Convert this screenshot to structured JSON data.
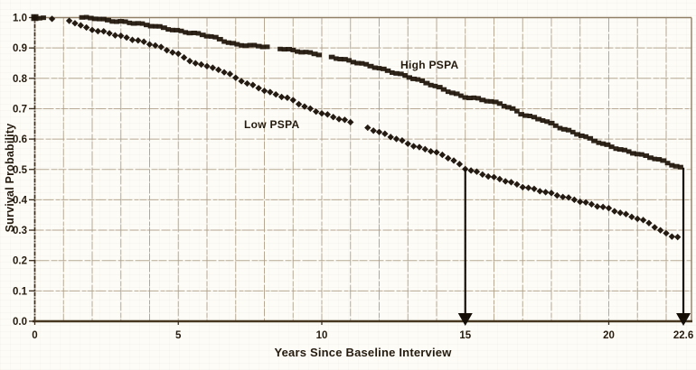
{
  "figure": {
    "background": "#fdfcf7"
  },
  "chart_data": {
    "type": "scatter",
    "title": "",
    "xlabel": "Years Since Baseline Interview",
    "ylabel": "Survival Probability",
    "xlim": [
      0,
      22.9
    ],
    "ylim": [
      0.0,
      1.0
    ],
    "grid": true,
    "legend_position": "inline-annotations",
    "x_ticks": [
      {
        "value": 0,
        "label": "0"
      },
      {
        "value": 5,
        "label": "5"
      },
      {
        "value": 10,
        "label": "10"
      },
      {
        "value": 15,
        "label": "15"
      },
      {
        "value": 20,
        "label": "20"
      },
      {
        "value": 22.6,
        "label": "22.6"
      }
    ],
    "y_ticks": [
      {
        "value": 1.0,
        "label": "1.0"
      },
      {
        "value": 0.9,
        "label": "0.9"
      },
      {
        "value": 0.8,
        "label": "0.8"
      },
      {
        "value": 0.7,
        "label": "0.7"
      },
      {
        "value": 0.6,
        "label": "0.6"
      },
      {
        "value": 0.5,
        "label": "0.5"
      },
      {
        "value": 0.4,
        "label": "0.4"
      },
      {
        "value": 0.3,
        "label": "0.3"
      },
      {
        "value": 0.2,
        "label": "0.2"
      },
      {
        "value": 0.1,
        "label": "0.1"
      },
      {
        "value": 0.0,
        "label": "0.0"
      }
    ],
    "series": [
      {
        "name": "High PSPA",
        "marker": "square",
        "color": "#241a0f",
        "label_pos": {
          "year": 12.74,
          "prob": 0.844
        },
        "points": [
          [
            0,
            1.0
          ],
          [
            0.25,
            1.0
          ],
          [
            1.65,
            1.0
          ],
          [
            2.1,
            0.998
          ],
          [
            2.6,
            0.99
          ],
          [
            3.5,
            0.982
          ],
          [
            4.3,
            0.97
          ],
          [
            5,
            0.956
          ],
          [
            5.6,
            0.948
          ],
          [
            6.2,
            0.937
          ],
          [
            6.6,
            0.923
          ],
          [
            7,
            0.911
          ],
          [
            7.9,
            0.906
          ],
          [
            8.6,
            0.898
          ],
          [
            9.2,
            0.889
          ],
          [
            9.9,
            0.879
          ],
          [
            10.4,
            0.869
          ],
          [
            11.1,
            0.855
          ],
          [
            11.7,
            0.841
          ],
          [
            12.3,
            0.825
          ],
          [
            13,
            0.806
          ],
          [
            13.6,
            0.787
          ],
          [
            14.4,
            0.758
          ],
          [
            14.9,
            0.74
          ],
          [
            15.5,
            0.732
          ],
          [
            16.2,
            0.717
          ],
          [
            16.6,
            0.701
          ],
          [
            17,
            0.681
          ],
          [
            17.7,
            0.663
          ],
          [
            18.4,
            0.634
          ],
          [
            19,
            0.614
          ],
          [
            19.8,
            0.584
          ],
          [
            20.5,
            0.563
          ],
          [
            21.1,
            0.549
          ],
          [
            21.8,
            0.531
          ],
          [
            22.3,
            0.512
          ],
          [
            22.55,
            0.504
          ]
        ],
        "marker_gaps": [
          [
            0.3,
            1.55
          ],
          [
            8.15,
            8.45
          ],
          [
            10.0,
            10.32
          ]
        ]
      },
      {
        "name": "Low PSPA",
        "marker": "diamond",
        "color": "#1c130a",
        "label_pos": {
          "year": 7.29,
          "prob": 0.648
        },
        "points": [
          [
            0,
            1.0
          ],
          [
            0.6,
            0.995
          ],
          [
            1.15,
            0.989
          ],
          [
            1.45,
            0.982
          ],
          [
            1.85,
            0.963
          ],
          [
            2.5,
            0.951
          ],
          [
            3.3,
            0.931
          ],
          [
            3.65,
            0.923
          ],
          [
            4.25,
            0.907
          ],
          [
            4.7,
            0.89
          ],
          [
            5,
            0.879
          ],
          [
            5.3,
            0.864
          ],
          [
            5.6,
            0.848
          ],
          [
            6,
            0.842
          ],
          [
            6.35,
            0.828
          ],
          [
            6.75,
            0.818
          ],
          [
            7,
            0.8
          ],
          [
            7.6,
            0.776
          ],
          [
            8.25,
            0.751
          ],
          [
            8.9,
            0.732
          ],
          [
            9.5,
            0.702
          ],
          [
            10.1,
            0.682
          ],
          [
            10.75,
            0.663
          ],
          [
            11.4,
            0.643
          ],
          [
            12,
            0.623
          ],
          [
            12.6,
            0.601
          ],
          [
            13.3,
            0.574
          ],
          [
            13.9,
            0.559
          ],
          [
            14.5,
            0.535
          ],
          [
            15,
            0.503
          ],
          [
            15.9,
            0.475
          ],
          [
            16.3,
            0.466
          ],
          [
            17.05,
            0.442
          ],
          [
            17.7,
            0.428
          ],
          [
            18.3,
            0.413
          ],
          [
            18.9,
            0.398
          ],
          [
            19.3,
            0.387
          ],
          [
            20,
            0.371
          ],
          [
            20.5,
            0.354
          ],
          [
            20.9,
            0.342
          ],
          [
            21.4,
            0.324
          ],
          [
            21.8,
            0.298
          ],
          [
            22.2,
            0.281
          ],
          [
            22.5,
            0.274
          ]
        ],
        "marker_gaps": [
          [
            0.12,
            0.5
          ],
          [
            0.68,
            1.05
          ],
          [
            11.08,
            11.42
          ]
        ]
      }
    ],
    "median_arrows": [
      {
        "x": 15,
        "top_prob": 0.502
      },
      {
        "x": 22.6,
        "top_prob": 0.506
      }
    ],
    "colors": {
      "grid": "#ab9b83",
      "frame": "#8f7f67",
      "axis": "#46351f",
      "text": "#241a0e",
      "arrow": "#140e07"
    }
  }
}
